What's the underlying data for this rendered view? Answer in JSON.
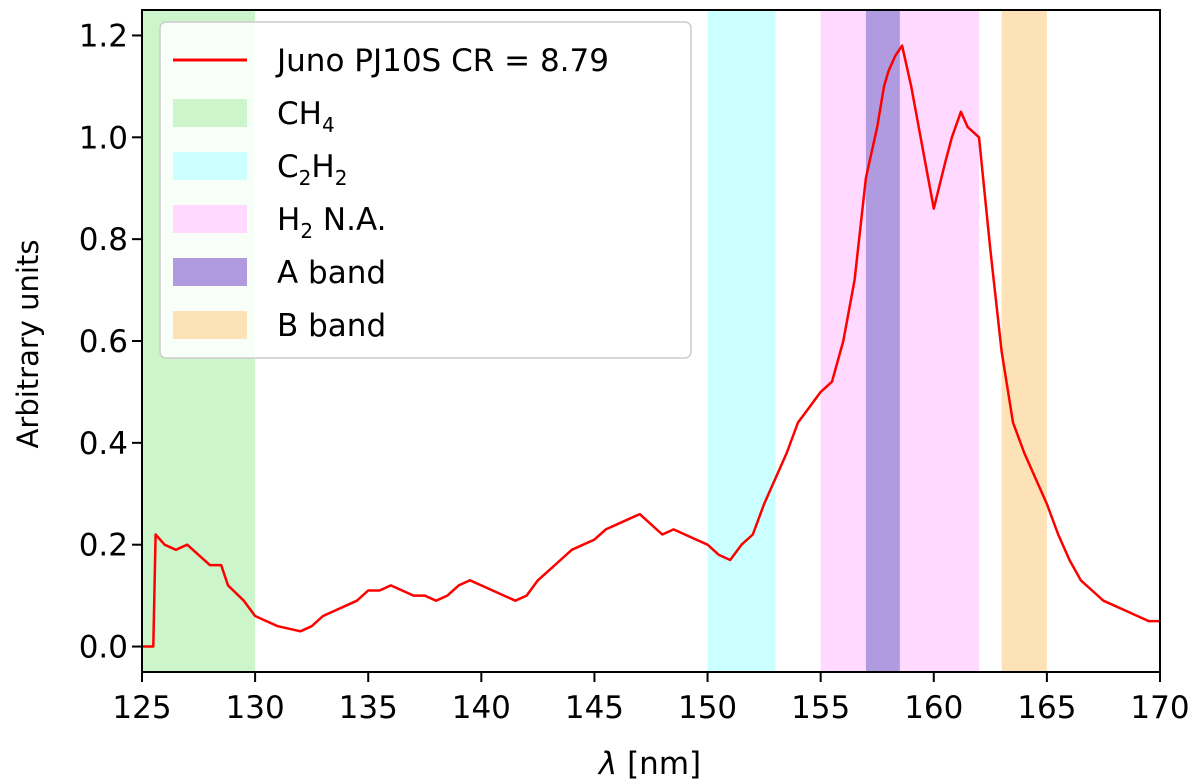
{
  "chart_data": {
    "type": "line",
    "xlabel_symbol": "λ",
    "xlabel_unit": "[nm]",
    "ylabel": "Arbitrary units",
    "xlim": [
      125,
      170
    ],
    "ylim": [
      -0.05,
      1.25
    ],
    "xticks": [
      125,
      130,
      135,
      140,
      145,
      150,
      155,
      160,
      165,
      170
    ],
    "yticks": [
      0.0,
      0.2,
      0.4,
      0.6,
      0.8,
      1.0,
      1.2
    ],
    "xtick_labels": [
      "125",
      "130",
      "135",
      "140",
      "145",
      "150",
      "155",
      "160",
      "165",
      "170"
    ],
    "ytick_labels": [
      "0.0",
      "0.2",
      "0.4",
      "0.6",
      "0.8",
      "1.0",
      "1.2"
    ],
    "grid": false,
    "legend_position": "upper-left",
    "series": [
      {
        "name": "Juno PJ10S CR =  8.79",
        "color": "#ff0000",
        "x": [
          125.0,
          125.5,
          125.6,
          126.0,
          126.5,
          127.0,
          127.5,
          128.0,
          128.5,
          128.8,
          129.5,
          130.0,
          130.5,
          131.0,
          131.5,
          132.0,
          132.5,
          133.0,
          133.5,
          134.0,
          134.5,
          135.0,
          135.5,
          136.0,
          136.5,
          137.0,
          137.5,
          138.0,
          138.5,
          139.0,
          139.5,
          140.0,
          140.5,
          141.0,
          141.5,
          142.0,
          142.5,
          143.0,
          143.5,
          144.0,
          144.5,
          145.0,
          145.5,
          146.0,
          146.5,
          147.0,
          147.5,
          148.0,
          148.5,
          149.0,
          149.5,
          150.0,
          150.5,
          151.0,
          151.5,
          152.0,
          152.5,
          153.0,
          153.5,
          154.0,
          154.5,
          155.0,
          155.5,
          156.0,
          156.5,
          157.0,
          157.5,
          157.8,
          158.0,
          158.3,
          158.6,
          159.0,
          159.5,
          160.0,
          160.5,
          160.8,
          161.2,
          161.5,
          162.0,
          162.5,
          163.0,
          163.5,
          164.0,
          164.5,
          165.0,
          165.5,
          166.0,
          166.5,
          167.0,
          167.5,
          168.0,
          168.5,
          169.0,
          169.5,
          170.0
        ],
        "y": [
          0.0,
          0.0,
          0.22,
          0.2,
          0.19,
          0.2,
          0.18,
          0.16,
          0.16,
          0.12,
          0.09,
          0.06,
          0.05,
          0.04,
          0.035,
          0.03,
          0.04,
          0.06,
          0.07,
          0.08,
          0.09,
          0.11,
          0.11,
          0.12,
          0.11,
          0.1,
          0.1,
          0.09,
          0.1,
          0.12,
          0.13,
          0.12,
          0.11,
          0.1,
          0.09,
          0.1,
          0.13,
          0.15,
          0.17,
          0.19,
          0.2,
          0.21,
          0.23,
          0.24,
          0.25,
          0.26,
          0.24,
          0.22,
          0.23,
          0.22,
          0.21,
          0.2,
          0.18,
          0.17,
          0.2,
          0.22,
          0.28,
          0.33,
          0.38,
          0.44,
          0.47,
          0.5,
          0.52,
          0.6,
          0.72,
          0.92,
          1.02,
          1.1,
          1.13,
          1.16,
          1.18,
          1.1,
          0.98,
          0.86,
          0.95,
          1.0,
          1.05,
          1.02,
          1.0,
          0.78,
          0.58,
          0.44,
          0.38,
          0.33,
          0.28,
          0.22,
          0.17,
          0.13,
          0.11,
          0.09,
          0.08,
          0.07,
          0.06,
          0.05,
          0.05
        ]
      }
    ],
    "bands": [
      {
        "name_base": "CH",
        "name_sub": "4",
        "name_tail": "",
        "from": 125,
        "to": 130,
        "color": "#ccf5cc"
      },
      {
        "name_base": "C",
        "name_sub": "2",
        "name_tail": "H",
        "name_sub2": "2",
        "from": 150,
        "to": 153,
        "color": "#ccffff"
      },
      {
        "name_base": "H",
        "name_sub": "2",
        "name_tail": " N.A.",
        "from": 155,
        "to": 162,
        "color": "#ffd9ff"
      },
      {
        "name_base": "A band",
        "name_sub": "",
        "name_tail": "",
        "from": 157,
        "to": 158.5,
        "color": "#b09ae0"
      },
      {
        "name_base": "B band",
        "name_sub": "",
        "name_tail": "",
        "from": 163,
        "to": 165,
        "color": "#fde2b8"
      }
    ]
  }
}
